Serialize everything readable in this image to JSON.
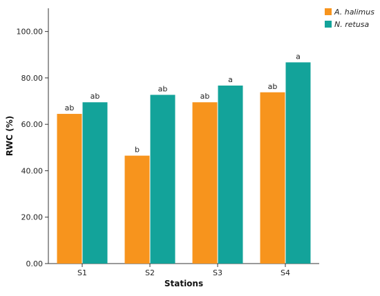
{
  "chart_data": {
    "type": "bar",
    "title": "",
    "xlabel": "Stations",
    "ylabel": "RWC (%)",
    "ylim": [
      0,
      110
    ],
    "yticks": [
      0,
      20,
      40,
      60,
      80,
      100
    ],
    "ytick_labels": [
      "0.00",
      "20.00",
      "40.00",
      "60.00",
      "80.00",
      "100.00"
    ],
    "categories": [
      "S1",
      "S2",
      "S3",
      "S4"
    ],
    "series": [
      {
        "name": "A. halimus",
        "color": "#F7941D",
        "values": [
          64.5,
          46.5,
          69.5,
          73.8
        ],
        "labels": [
          "ab",
          "b",
          "ab",
          "ab"
        ]
      },
      {
        "name": "N. retusa",
        "color": "#13A39A",
        "values": [
          69.5,
          72.7,
          76.7,
          86.7
        ],
        "labels": [
          "ab",
          "ab",
          "a",
          "a"
        ]
      }
    ],
    "legend_position": "top-right",
    "grid": false
  }
}
